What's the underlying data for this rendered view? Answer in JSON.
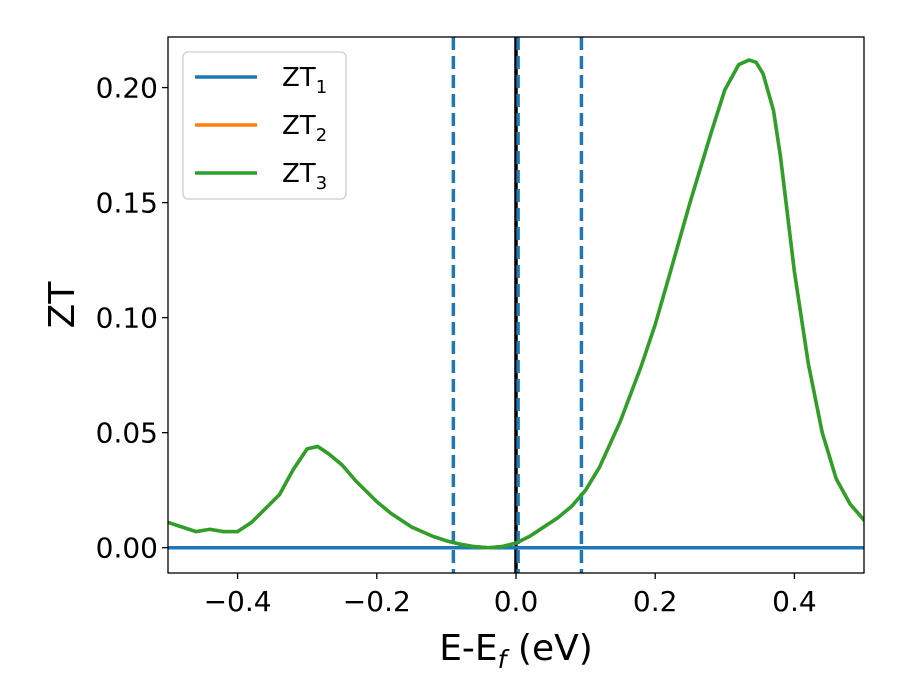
{
  "chart_data": {
    "type": "line",
    "xlabel": "E-E",
    "xlabel_sub": "f",
    "xlabel_unit": " (eV)",
    "ylabel": "ZT",
    "xlim": [
      -0.5,
      0.5
    ],
    "ylim": [
      -0.011,
      0.222
    ],
    "x_ticks": [
      -0.4,
      -0.2,
      0.0,
      0.2,
      0.4
    ],
    "x_tick_labels": [
      "−0.4",
      "−0.2",
      "0.0",
      "0.2",
      "0.4"
    ],
    "y_ticks": [
      0.0,
      0.05,
      0.1,
      0.15,
      0.2
    ],
    "y_tick_labels": [
      "0.00",
      "0.05",
      "0.10",
      "0.15",
      "0.20"
    ],
    "grid": false,
    "legend_position": "top-left",
    "legend": [
      {
        "base": "ZT",
        "sub": "1",
        "color": "#1f77b4"
      },
      {
        "base": "ZT",
        "sub": "2",
        "color": "#ff7f0e"
      },
      {
        "base": "ZT",
        "sub": "3",
        "color": "#2ca02c"
      }
    ],
    "series": [
      {
        "color": "#1f77b4",
        "x": [
          -0.5,
          0.5
        ],
        "y": [
          0.0,
          0.0
        ]
      },
      {
        "color": "#ff7f0e",
        "x": [
          -0.5,
          -0.46,
          -0.44,
          -0.42,
          -0.4,
          -0.38,
          -0.36,
          -0.34,
          -0.32,
          -0.3,
          -0.285,
          -0.27,
          -0.25,
          -0.23,
          -0.2,
          -0.18,
          -0.15,
          -0.12,
          -0.1,
          -0.08,
          -0.06,
          -0.04,
          -0.02,
          0.0,
          0.02,
          0.04,
          0.06,
          0.08,
          0.1,
          0.12,
          0.15,
          0.18,
          0.2,
          0.22,
          0.25,
          0.28,
          0.3,
          0.32,
          0.335,
          0.345,
          0.355,
          0.37,
          0.38,
          0.4,
          0.42,
          0.44,
          0.46,
          0.48,
          0.5
        ],
        "y": [
          0.011,
          0.007,
          0.008,
          0.007,
          0.007,
          0.011,
          0.017,
          0.023,
          0.034,
          0.043,
          0.044,
          0.041,
          0.036,
          0.029,
          0.02,
          0.015,
          0.009,
          0.005,
          0.003,
          0.0015,
          0.0005,
          0.0,
          0.0005,
          0.002,
          0.005,
          0.009,
          0.013,
          0.018,
          0.025,
          0.035,
          0.055,
          0.079,
          0.097,
          0.118,
          0.15,
          0.18,
          0.199,
          0.21,
          0.212,
          0.211,
          0.206,
          0.19,
          0.17,
          0.12,
          0.08,
          0.05,
          0.03,
          0.019,
          0.012
        ]
      },
      {
        "color": "#2ca02c",
        "x": [
          -0.5,
          -0.46,
          -0.44,
          -0.42,
          -0.4,
          -0.38,
          -0.36,
          -0.34,
          -0.32,
          -0.3,
          -0.285,
          -0.27,
          -0.25,
          -0.23,
          -0.2,
          -0.18,
          -0.15,
          -0.12,
          -0.1,
          -0.08,
          -0.06,
          -0.04,
          -0.02,
          0.0,
          0.02,
          0.04,
          0.06,
          0.08,
          0.1,
          0.12,
          0.15,
          0.18,
          0.2,
          0.22,
          0.25,
          0.28,
          0.3,
          0.32,
          0.335,
          0.345,
          0.355,
          0.37,
          0.38,
          0.4,
          0.42,
          0.44,
          0.46,
          0.48,
          0.5
        ],
        "y": [
          0.011,
          0.007,
          0.008,
          0.007,
          0.007,
          0.011,
          0.017,
          0.023,
          0.034,
          0.043,
          0.044,
          0.041,
          0.036,
          0.029,
          0.02,
          0.015,
          0.009,
          0.005,
          0.003,
          0.0015,
          0.0005,
          0.0,
          0.0005,
          0.002,
          0.005,
          0.009,
          0.013,
          0.018,
          0.025,
          0.035,
          0.055,
          0.079,
          0.097,
          0.118,
          0.15,
          0.18,
          0.199,
          0.21,
          0.212,
          0.211,
          0.206,
          0.19,
          0.17,
          0.12,
          0.08,
          0.05,
          0.03,
          0.019,
          0.012
        ]
      }
    ],
    "vertical_lines": [
      {
        "x": -0.09,
        "color": "#1f77b4",
        "style": "dashed"
      },
      {
        "x": 0.0,
        "color": "#000000",
        "style": "solid"
      },
      {
        "x": 0.003,
        "color": "#1f77b4",
        "style": "dashed"
      },
      {
        "x": 0.094,
        "color": "#1f77b4",
        "style": "dashed"
      }
    ]
  }
}
